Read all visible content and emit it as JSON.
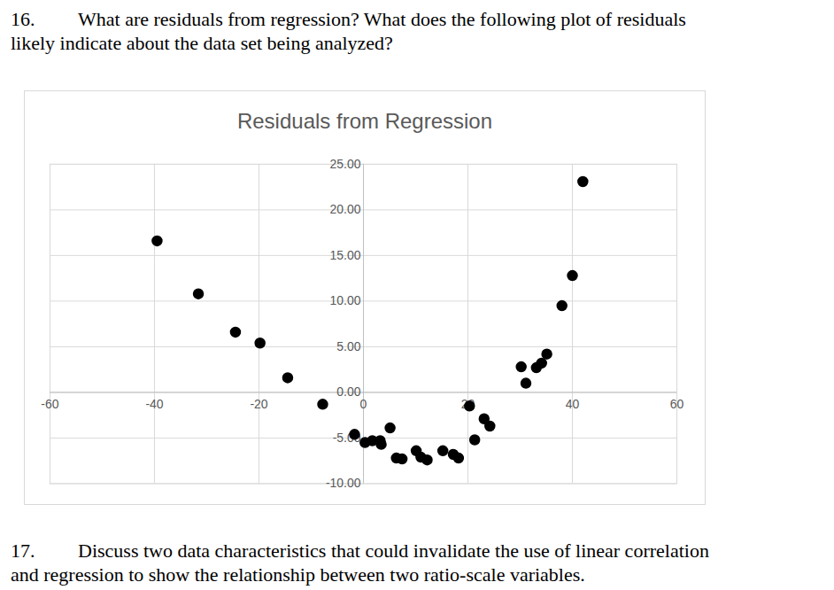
{
  "questions": [
    {
      "number": "16.",
      "lines": [
        "What are residuals from regression? What does the following plot of residuals",
        "likely indicate about the data set being analyzed?"
      ]
    },
    {
      "number": "17.",
      "lines": [
        "Discuss two data characteristics that could invalidate the use of linear correlation",
        "and regression to show the relationship between two ratio-scale variables."
      ]
    }
  ],
  "chart_data": {
    "type": "scatter",
    "title": "Residuals from Regression",
    "x": [
      -39.5,
      -31.6,
      -24.5,
      -19.8,
      -14.5,
      -7.8,
      -1.7,
      0.3,
      1.7,
      3.2,
      3.4,
      5.1,
      6.3,
      7.4,
      10.1,
      11.0,
      12.2,
      15.2,
      17.2,
      18.2,
      20.3,
      21.3,
      23.1,
      24.2,
      30.2,
      31.1,
      33.1,
      34.1,
      35.1,
      38.0,
      40.0,
      42.0
    ],
    "values": [
      16.6,
      10.8,
      6.6,
      5.4,
      1.6,
      -1.3,
      -4.6,
      -5.5,
      -5.3,
      -5.3,
      -5.7,
      -3.9,
      -7.2,
      -7.3,
      -6.4,
      -7.1,
      -7.4,
      -6.4,
      -6.8,
      -7.2,
      -1.5,
      -5.2,
      -2.9,
      -3.7,
      2.8,
      1.0,
      2.7,
      3.2,
      4.2,
      9.5,
      12.8,
      23.1
    ],
    "color": "#000000",
    "marker": "circle",
    "xlim": [
      -60,
      60
    ],
    "xticks": [
      -60,
      -40,
      -20,
      0,
      20,
      40,
      60
    ],
    "ylim": [
      -10,
      25
    ],
    "yticks": [
      {
        "value": -10,
        "label": "-10.00"
      },
      {
        "value": -5,
        "label": "-5.00"
      },
      {
        "value": 0,
        "label": "0.00"
      },
      {
        "value": 5,
        "label": "5.00"
      },
      {
        "value": 10,
        "label": "10.00"
      },
      {
        "value": 15,
        "label": "15.00"
      },
      {
        "value": 20,
        "label": "20.00"
      },
      {
        "value": 25,
        "label": "25.00"
      }
    ],
    "grid": true
  }
}
